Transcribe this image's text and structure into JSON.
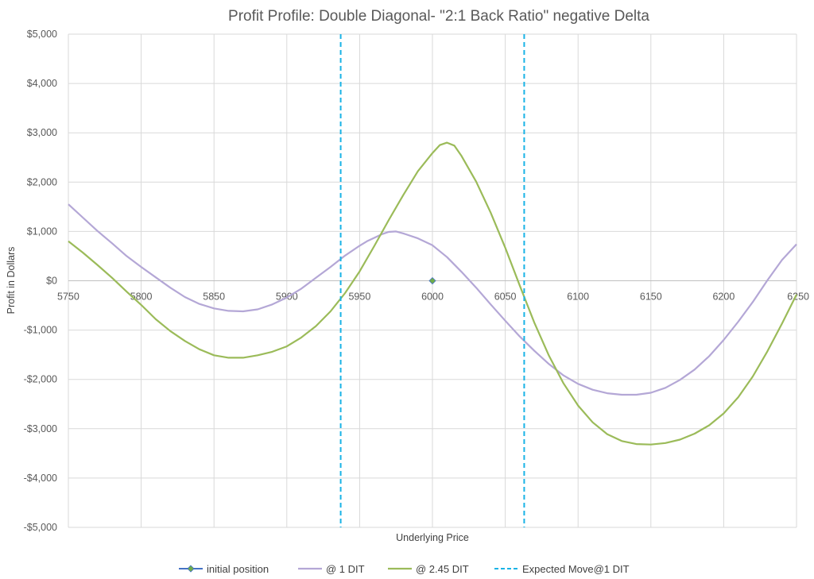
{
  "chart_data": {
    "type": "line",
    "title": "Profit Profile: Double Diagonal- \"2:1 Back Ratio\" negative Delta",
    "xlabel": "Underlying Price",
    "ylabel": "Profit in Dollars",
    "xlim": [
      5750,
      6250
    ],
    "ylim": [
      -5000,
      5000
    ],
    "x_ticks": [
      "5750",
      "5800",
      "5850",
      "5900",
      "5950",
      "6000",
      "6050",
      "6100",
      "6150",
      "6200",
      "6250"
    ],
    "y_ticks": [
      "$5,000",
      "$4,000",
      "$3,000",
      "$2,000",
      "$1,000",
      "$0",
      "-$1,000",
      "-$2,000",
      "-$3,000",
      "-$4,000",
      "-$5,000"
    ],
    "grid": "vertical and horizontal major gridlines",
    "legend_position": "bottom",
    "series": [
      {
        "name": "initial position",
        "color": "#70ad47",
        "marker": "diamond",
        "points": [
          [
            6000,
            0
          ]
        ]
      },
      {
        "name": "@ 1 DIT",
        "color": "#b4a7d6",
        "points": [
          [
            5750,
            1550
          ],
          [
            5760,
            1280
          ],
          [
            5770,
            1010
          ],
          [
            5780,
            760
          ],
          [
            5790,
            500
          ],
          [
            5800,
            280
          ],
          [
            5810,
            70
          ],
          [
            5820,
            -140
          ],
          [
            5830,
            -330
          ],
          [
            5840,
            -470
          ],
          [
            5850,
            -560
          ],
          [
            5860,
            -610
          ],
          [
            5870,
            -620
          ],
          [
            5880,
            -580
          ],
          [
            5890,
            -480
          ],
          [
            5900,
            -340
          ],
          [
            5910,
            -160
          ],
          [
            5920,
            60
          ],
          [
            5930,
            280
          ],
          [
            5940,
            510
          ],
          [
            5950,
            710
          ],
          [
            5955,
            800
          ],
          [
            5960,
            870
          ],
          [
            5965,
            940
          ],
          [
            5970,
            990
          ],
          [
            5975,
            1000
          ],
          [
            5980,
            960
          ],
          [
            5990,
            860
          ],
          [
            6000,
            720
          ],
          [
            6010,
            480
          ],
          [
            6020,
            180
          ],
          [
            6030,
            -140
          ],
          [
            6040,
            -480
          ],
          [
            6050,
            -810
          ],
          [
            6060,
            -1130
          ],
          [
            6070,
            -1420
          ],
          [
            6080,
            -1690
          ],
          [
            6090,
            -1920
          ],
          [
            6100,
            -2090
          ],
          [
            6110,
            -2210
          ],
          [
            6120,
            -2280
          ],
          [
            6130,
            -2310
          ],
          [
            6140,
            -2310
          ],
          [
            6150,
            -2270
          ],
          [
            6160,
            -2170
          ],
          [
            6170,
            -2010
          ],
          [
            6180,
            -1800
          ],
          [
            6190,
            -1530
          ],
          [
            6200,
            -1200
          ],
          [
            6210,
            -830
          ],
          [
            6220,
            -430
          ],
          [
            6230,
            10
          ],
          [
            6240,
            420
          ],
          [
            6250,
            740
          ]
        ]
      },
      {
        "name": "@ 2.45 DIT",
        "color": "#9bbb59",
        "points": [
          [
            5750,
            800
          ],
          [
            5760,
            570
          ],
          [
            5770,
            320
          ],
          [
            5780,
            60
          ],
          [
            5790,
            -220
          ],
          [
            5800,
            -490
          ],
          [
            5810,
            -780
          ],
          [
            5820,
            -1020
          ],
          [
            5830,
            -1220
          ],
          [
            5840,
            -1390
          ],
          [
            5850,
            -1510
          ],
          [
            5860,
            -1560
          ],
          [
            5870,
            -1560
          ],
          [
            5880,
            -1510
          ],
          [
            5890,
            -1440
          ],
          [
            5900,
            -1330
          ],
          [
            5910,
            -1150
          ],
          [
            5920,
            -920
          ],
          [
            5930,
            -620
          ],
          [
            5940,
            -250
          ],
          [
            5950,
            190
          ],
          [
            5960,
            700
          ],
          [
            5970,
            1230
          ],
          [
            5980,
            1740
          ],
          [
            5990,
            2220
          ],
          [
            6000,
            2590
          ],
          [
            6005,
            2750
          ],
          [
            6010,
            2800
          ],
          [
            6015,
            2740
          ],
          [
            6020,
            2530
          ],
          [
            6030,
            2010
          ],
          [
            6040,
            1380
          ],
          [
            6050,
            670
          ],
          [
            6060,
            -100
          ],
          [
            6070,
            -850
          ],
          [
            6080,
            -1520
          ],
          [
            6090,
            -2080
          ],
          [
            6100,
            -2530
          ],
          [
            6110,
            -2870
          ],
          [
            6120,
            -3110
          ],
          [
            6130,
            -3250
          ],
          [
            6140,
            -3310
          ],
          [
            6150,
            -3320
          ],
          [
            6160,
            -3290
          ],
          [
            6170,
            -3220
          ],
          [
            6180,
            -3100
          ],
          [
            6190,
            -2930
          ],
          [
            6200,
            -2690
          ],
          [
            6210,
            -2360
          ],
          [
            6220,
            -1940
          ],
          [
            6230,
            -1430
          ],
          [
            6240,
            -870
          ],
          [
            6250,
            -280
          ]
        ]
      },
      {
        "name": "Expected Move@1 DIT",
        "color": "#19b3e6",
        "dash": "dashed",
        "vertical_lines_x": [
          5937,
          6063
        ]
      }
    ]
  }
}
